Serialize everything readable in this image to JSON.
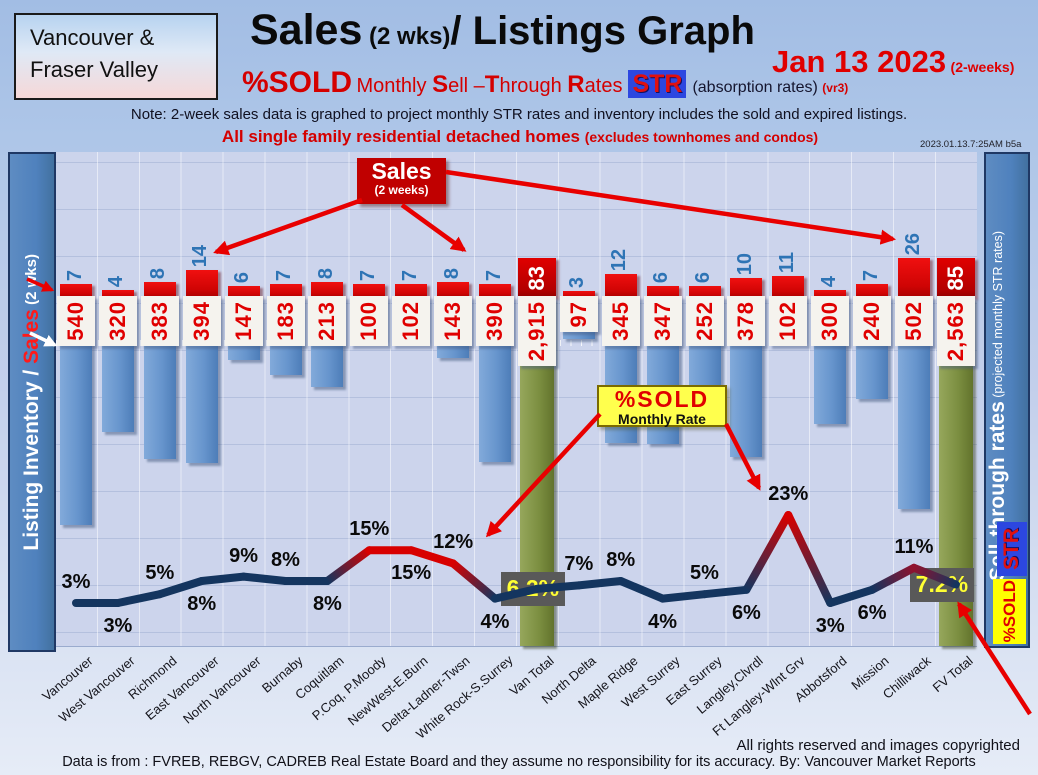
{
  "legend_box": {
    "line1": "Vancouver &",
    "line2": "Fraser Valley"
  },
  "title": {
    "main": "Sales",
    "sub": " (2 wks)",
    "main2": "/ Listings Graph"
  },
  "date": {
    "main": "Jan 13  2023",
    "suffix": "(2-weeks)"
  },
  "subtitle": {
    "pct": "%SOLD",
    "w1": "Monthly ",
    "s": "S",
    "s2": "ell –",
    "t": "T",
    "t2": "hrough ",
    "r": "R",
    "r2": "ates",
    "str": "STR",
    "abs": "(absorption rates)",
    "vr": "(vr3)"
  },
  "note": "Note: 2-week sales data is graphed to project monthly STR rates and inventory includes the sold and expired listings.",
  "subnote": {
    "main": "All single family residential detached homes ",
    "paren": "(excludes townhomes and condos)"
  },
  "timestamp": "2023.01.13.7:25AM b5a",
  "left_banner": {
    "part1": "Listing Inventory / ",
    "sales": "Sales",
    "part2": " (2  wks)"
  },
  "right_banner": {
    "main": "Sell-through rates",
    "paren": "  (projected monthly STR rates)",
    "str": "STR",
    "pct_sold": "%SOLD"
  },
  "callouts": {
    "sales_box": {
      "line1": "Sales",
      "line2": "(2 weeks)"
    },
    "pct_box": {
      "line1": "%SOLD",
      "line2": "Monthly Rate"
    }
  },
  "footer": {
    "rights": "All rights reserved and  images copyrighted",
    "source": "Data is from : FVREB, REBGV, CADREB Real Estate Board and they assume no responsibility for its accuracy. By: Vancouver Market Reports"
  },
  "chart_data": {
    "type": "bar",
    "subtype": "bar+line combo: 2-week sales (red caps), listing inventory (hanging blue bars), %SOLD STR (line)",
    "title": "Sales (2 wks)/ Listings Graph — %SOLD Monthly Sell-Through Rates (STR) — Jan 13 2023",
    "categories": [
      "Vancouver",
      "West Vancouver",
      "Richmond",
      "East Vancouver",
      "North Vancouver",
      "Burnaby",
      "Coquitlam",
      "P.Coq, P.Moody",
      "NewWest-E.Burn",
      "Delta-Ladner-Twsn",
      "White Rock-S.Surrey",
      "Van Total",
      "North Delta",
      "Maple Ridge",
      "West Surrey",
      "East Surrey",
      "Langley,Clvrdl",
      "Ft Langley-Wlnt Grv",
      "Abbotsford",
      "Mission",
      "Chilliwack",
      "FV Total"
    ],
    "series": [
      {
        "name": "Sales (2 wks)",
        "values": [
          7,
          4,
          8,
          14,
          6,
          7,
          8,
          7,
          7,
          8,
          7,
          83,
          3,
          12,
          6,
          6,
          10,
          11,
          4,
          7,
          26,
          85
        ]
      },
      {
        "name": "Listing Inventory",
        "values": [
          540,
          320,
          383,
          394,
          147,
          183,
          213,
          100,
          102,
          143,
          390,
          2915,
          97,
          345,
          347,
          252,
          378,
          102,
          300,
          240,
          502,
          2563
        ]
      },
      {
        "name": "%SOLD Monthly STR",
        "values": [
          3,
          3,
          5,
          8,
          9,
          8,
          8,
          15,
          15,
          12,
          4,
          6.2,
          7,
          8,
          4,
          5,
          6,
          23,
          3,
          6,
          11,
          7.2
        ]
      }
    ],
    "inventory_labels": [
      "540",
      "320",
      "383",
      "394",
      "147",
      "183",
      "213",
      "100",
      "102",
      "143",
      "390",
      "2,915",
      "97",
      "345",
      "347",
      "252",
      "378",
      "102",
      "300",
      "240",
      "502",
      "2,563"
    ],
    "pct_labels": [
      "3%",
      "3%",
      "5%",
      "8%",
      "9%",
      "8%",
      "8%",
      "15%",
      "15%",
      "12%",
      "4%",
      "6.2%",
      "7%",
      "8%",
      "4%",
      "5%",
      "6%",
      "23%",
      "3%",
      "6%",
      "11%",
      "7.2%"
    ],
    "pct_label_side": [
      "above",
      "below",
      "above",
      "below",
      "above",
      "above",
      "below",
      "above",
      "below",
      "above",
      "below",
      "box",
      "above",
      "above",
      "below",
      "above",
      "below",
      "above",
      "below",
      "below",
      "above",
      "box"
    ],
    "totals_index": [
      11,
      21
    ],
    "legend_position": "banners-left-right",
    "grid": true,
    "colors": {
      "bar_blue": "#6795cd",
      "bar_olive": "#7c8f41",
      "cap_red": "#d40505",
      "inventory_num": "#e00000",
      "sales_num": "#2e74b5",
      "line_low": "#14355f",
      "line_high": "#d80000",
      "pct_box_bg": "#595959",
      "pct_box_text": "#ffff33"
    }
  }
}
